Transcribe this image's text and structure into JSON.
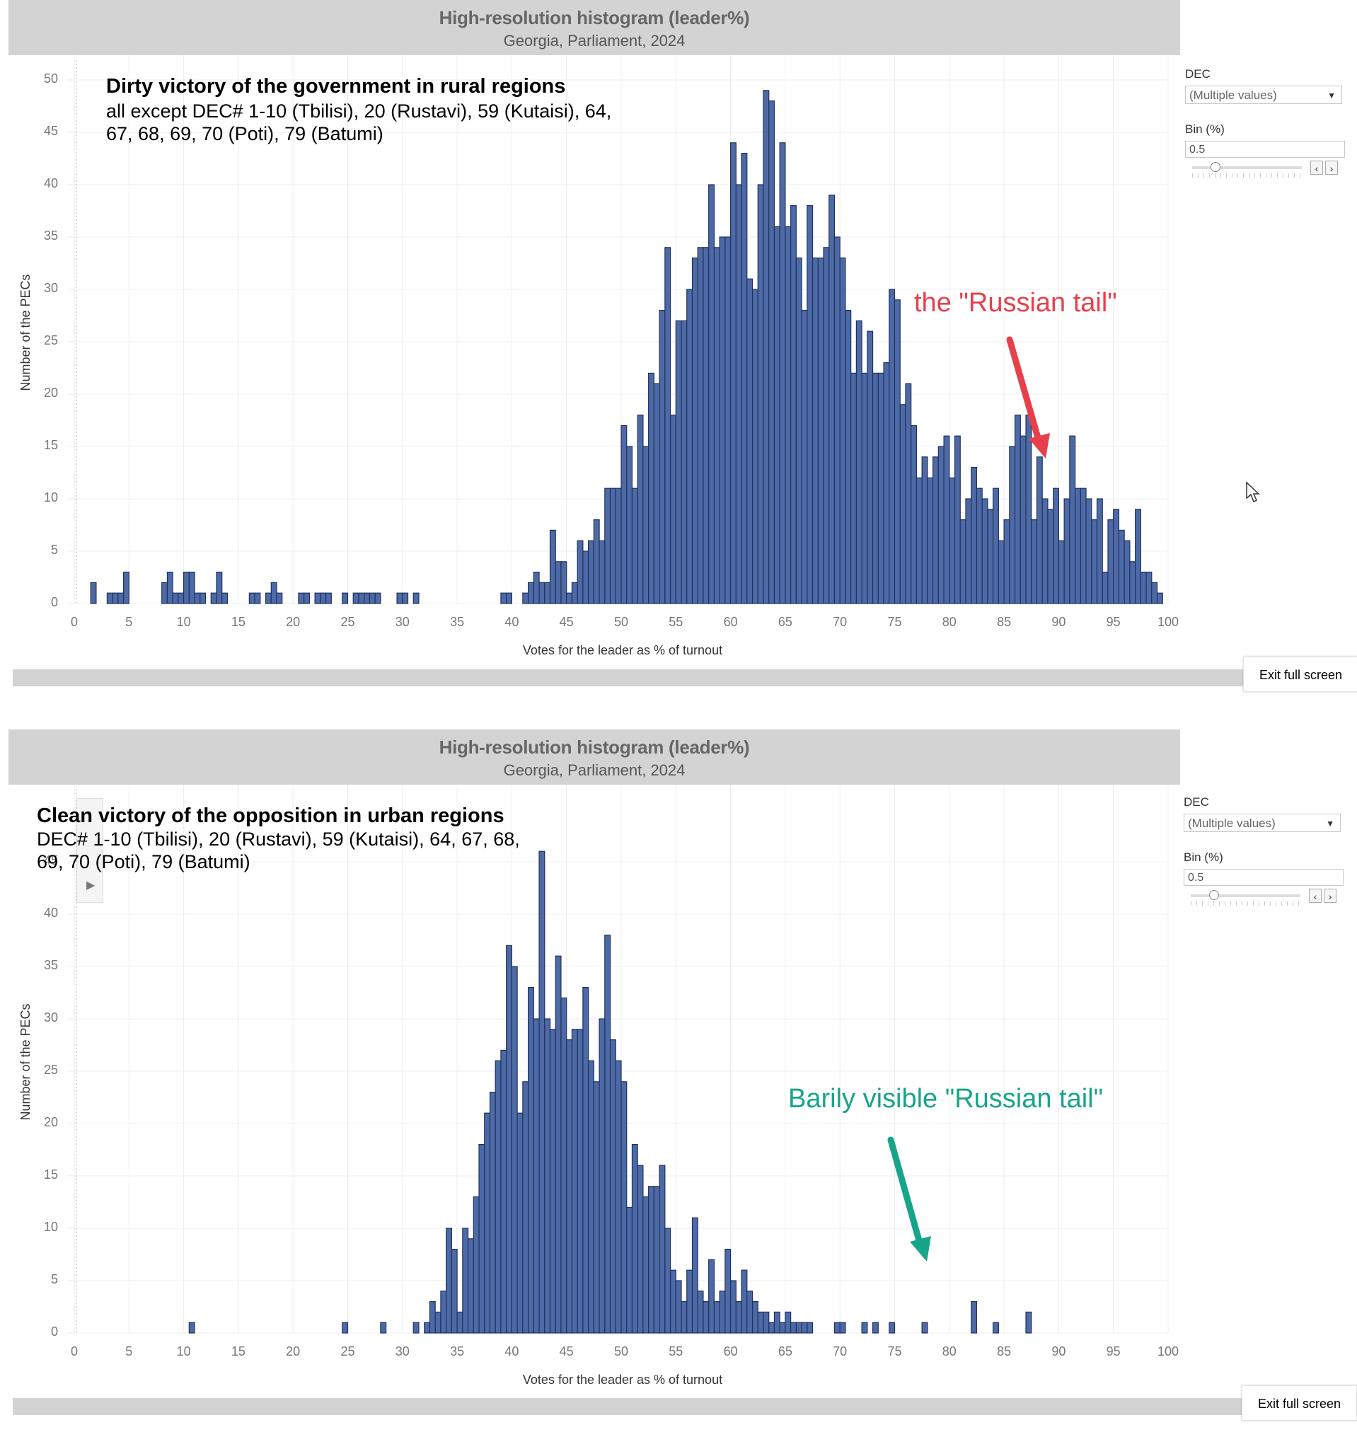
{
  "panels": [
    {
      "header": {
        "title": "High-resolution histogram (leader%)",
        "subtitle": "Georgia, Parliament, 2024"
      },
      "annotation": {
        "heading": "Dirty victory of the government in rural regions",
        "lines": [
          "all except DEC# 1-10 (Tbilisi), 20 (Rustavi), 59 (Kutaisi), 64,",
          "67, 68, 69, 70 (Poti), 79 (Batumi)"
        ]
      },
      "callout": {
        "text": "the \"Russian tail\"",
        "color": "#e8404a"
      },
      "controls": {
        "dec_label": "DEC",
        "dec_value": "(Multiple values)",
        "bin_label": "Bin (%)",
        "bin_value": "0.5"
      },
      "exit_label": "Exit full screen"
    },
    {
      "header": {
        "title": "High-resolution histogram (leader%)",
        "subtitle": "Georgia, Parliament, 2024"
      },
      "annotation": {
        "heading": "Clean victory of the opposition in urban regions",
        "lines": [
          "DEC# 1-10 (Tbilisi), 20 (Rustavi), 59 (Kutaisi), 64, 67, 68,",
          "69, 70 (Poti), 79 (Batumi)"
        ]
      },
      "callout": {
        "text": "Barily visible \"Russian tail\"",
        "color": "#17a589"
      },
      "controls": {
        "dec_label": "DEC",
        "dec_value": "(Multiple values)",
        "bin_label": "Bin (%)",
        "bin_value": "0.5"
      },
      "exit_label": "Exit full screen"
    }
  ],
  "bar_color": "#4e6aa6",
  "chart_data": [
    {
      "type": "bar",
      "title": "High-resolution histogram (leader%)",
      "subtitle": "Georgia, Parliament, 2024",
      "xlabel": "Votes for the leader as % of turnout",
      "ylabel": "Number of the PECs",
      "xlim": [
        0,
        100
      ],
      "ylim": [
        0,
        50
      ],
      "xticks": [
        0,
        5,
        10,
        15,
        20,
        25,
        30,
        35,
        40,
        45,
        50,
        55,
        60,
        65,
        70,
        75,
        80,
        85,
        90,
        95,
        100
      ],
      "yticks": [
        0,
        5,
        10,
        15,
        20,
        25,
        30,
        35,
        40,
        45,
        50
      ],
      "bin_width": 0.5,
      "bins": [
        [
          1.5,
          2
        ],
        [
          3,
          1
        ],
        [
          3.5,
          1
        ],
        [
          4,
          1
        ],
        [
          4.5,
          3
        ],
        [
          8,
          2
        ],
        [
          8.5,
          3
        ],
        [
          9,
          1
        ],
        [
          9.5,
          1
        ],
        [
          10,
          3
        ],
        [
          10.5,
          3
        ],
        [
          11,
          1
        ],
        [
          11.5,
          1
        ],
        [
          12.5,
          1
        ],
        [
          13,
          3
        ],
        [
          13.5,
          1
        ],
        [
          16,
          1
        ],
        [
          16.5,
          1
        ],
        [
          17.5,
          1
        ],
        [
          18,
          2
        ],
        [
          18.5,
          1
        ],
        [
          20.5,
          1
        ],
        [
          21,
          1
        ],
        [
          22,
          1
        ],
        [
          22.5,
          1
        ],
        [
          23,
          1
        ],
        [
          24.5,
          1
        ],
        [
          25.5,
          1
        ],
        [
          26,
          1
        ],
        [
          26.5,
          1
        ],
        [
          27,
          1
        ],
        [
          27.5,
          1
        ],
        [
          29.5,
          1
        ],
        [
          30,
          1
        ],
        [
          31,
          1
        ],
        [
          39,
          1
        ],
        [
          39.5,
          1
        ],
        [
          41,
          1
        ],
        [
          41.5,
          2
        ],
        [
          42,
          3
        ],
        [
          42.5,
          2
        ],
        [
          43,
          2
        ],
        [
          43.5,
          7
        ],
        [
          44,
          4
        ],
        [
          44.5,
          4
        ],
        [
          45,
          1
        ],
        [
          45.5,
          2
        ],
        [
          46,
          6
        ],
        [
          46.5,
          5
        ],
        [
          47,
          6
        ],
        [
          47.5,
          8
        ],
        [
          48,
          6
        ],
        [
          48.5,
          11
        ],
        [
          49,
          11
        ],
        [
          49.5,
          11
        ],
        [
          50,
          17
        ],
        [
          50.5,
          15
        ],
        [
          51,
          11
        ],
        [
          51.5,
          18
        ],
        [
          52,
          15
        ],
        [
          52.5,
          22
        ],
        [
          53,
          21
        ],
        [
          53.5,
          28
        ],
        [
          54,
          34
        ],
        [
          54.5,
          18
        ],
        [
          55,
          27
        ],
        [
          55.5,
          27
        ],
        [
          56,
          30
        ],
        [
          56.5,
          33
        ],
        [
          57,
          34
        ],
        [
          57.5,
          34
        ],
        [
          58,
          40
        ],
        [
          58.5,
          34
        ],
        [
          59,
          35
        ],
        [
          59.5,
          35
        ],
        [
          60,
          44
        ],
        [
          60.5,
          40
        ],
        [
          61,
          43
        ],
        [
          61.5,
          31
        ],
        [
          62,
          30
        ],
        [
          62.5,
          40
        ],
        [
          63,
          49
        ],
        [
          63.5,
          48
        ],
        [
          64,
          36
        ],
        [
          64.5,
          44
        ],
        [
          65,
          36
        ],
        [
          65.5,
          38
        ],
        [
          66,
          33
        ],
        [
          66.5,
          28
        ],
        [
          67,
          38
        ],
        [
          67.5,
          33
        ],
        [
          68,
          33
        ],
        [
          68.5,
          34
        ],
        [
          69,
          39
        ],
        [
          69.5,
          35
        ],
        [
          70,
          33
        ],
        [
          70.5,
          28
        ],
        [
          71,
          22
        ],
        [
          71.5,
          27
        ],
        [
          72,
          22
        ],
        [
          72.5,
          26
        ],
        [
          73,
          22
        ],
        [
          73.5,
          22
        ],
        [
          74,
          23
        ],
        [
          74.5,
          30
        ],
        [
          75,
          29
        ],
        [
          75.5,
          19
        ],
        [
          76,
          21
        ],
        [
          76.5,
          17
        ],
        [
          77,
          12
        ],
        [
          77.5,
          14
        ],
        [
          78,
          12
        ],
        [
          78.5,
          14
        ],
        [
          79,
          15
        ],
        [
          79.5,
          16
        ],
        [
          80,
          12
        ],
        [
          80.5,
          16
        ],
        [
          81,
          8
        ],
        [
          81.5,
          10
        ],
        [
          82,
          13
        ],
        [
          82.5,
          11
        ],
        [
          83,
          10
        ],
        [
          83.5,
          9
        ],
        [
          84,
          11
        ],
        [
          84.5,
          6
        ],
        [
          85,
          8
        ],
        [
          85.5,
          15
        ],
        [
          86,
          18
        ],
        [
          86.5,
          16
        ],
        [
          87,
          18
        ],
        [
          87.5,
          8
        ],
        [
          88,
          14
        ],
        [
          88.5,
          10
        ],
        [
          89,
          9
        ],
        [
          89.5,
          11
        ],
        [
          90,
          6
        ],
        [
          90.5,
          10
        ],
        [
          91,
          16
        ],
        [
          91.5,
          11
        ],
        [
          92,
          11
        ],
        [
          92.5,
          10
        ],
        [
          93,
          8
        ],
        [
          93.5,
          10
        ],
        [
          94,
          3
        ],
        [
          94.5,
          8
        ],
        [
          95,
          9
        ],
        [
          95.5,
          7
        ],
        [
          96,
          6
        ],
        [
          96.5,
          4
        ],
        [
          97,
          9
        ],
        [
          97.5,
          3
        ],
        [
          98,
          3
        ],
        [
          98.5,
          2
        ],
        [
          99,
          1
        ]
      ]
    },
    {
      "type": "bar",
      "title": "High-resolution histogram (leader%)",
      "subtitle": "Georgia, Parliament, 2024",
      "xlabel": "Votes for the leader as % of turnout",
      "ylabel": "Number of the PECs",
      "xlim": [
        0,
        100
      ],
      "ylim": [
        0,
        50
      ],
      "xticks": [
        0,
        5,
        10,
        15,
        20,
        25,
        30,
        35,
        40,
        45,
        50,
        55,
        60,
        65,
        70,
        75,
        80,
        85,
        90,
        95,
        100
      ],
      "yticks": [
        0,
        5,
        10,
        15,
        20,
        25,
        30,
        35,
        40,
        45
      ],
      "bin_width": 0.5,
      "bins": [
        [
          10.5,
          1
        ],
        [
          24.5,
          1
        ],
        [
          28,
          1
        ],
        [
          31,
          1
        ],
        [
          32,
          1
        ],
        [
          32.5,
          3
        ],
        [
          33,
          2
        ],
        [
          33.5,
          4
        ],
        [
          34,
          10
        ],
        [
          34.5,
          8
        ],
        [
          35,
          2
        ],
        [
          35.5,
          10
        ],
        [
          36,
          9
        ],
        [
          36.5,
          13
        ],
        [
          37,
          18
        ],
        [
          37.5,
          21
        ],
        [
          38,
          23
        ],
        [
          38.5,
          26
        ],
        [
          39,
          27
        ],
        [
          39.5,
          37
        ],
        [
          40,
          35
        ],
        [
          40.5,
          21
        ],
        [
          41,
          24
        ],
        [
          41.5,
          33
        ],
        [
          42,
          30
        ],
        [
          42.5,
          46
        ],
        [
          43,
          30
        ],
        [
          43.5,
          29
        ],
        [
          44,
          36
        ],
        [
          44.5,
          32
        ],
        [
          45,
          28
        ],
        [
          45.5,
          29
        ],
        [
          46,
          29
        ],
        [
          46.5,
          33
        ],
        [
          47,
          26
        ],
        [
          47.5,
          24
        ],
        [
          48,
          30
        ],
        [
          48.5,
          38
        ],
        [
          49,
          28
        ],
        [
          49.5,
          26
        ],
        [
          50,
          24
        ],
        [
          50.5,
          12
        ],
        [
          51,
          18
        ],
        [
          51.5,
          16
        ],
        [
          52,
          13
        ],
        [
          52.5,
          14
        ],
        [
          53,
          14
        ],
        [
          53.5,
          16
        ],
        [
          54,
          10
        ],
        [
          54.5,
          6
        ],
        [
          55,
          5
        ],
        [
          55.5,
          3
        ],
        [
          56,
          6
        ],
        [
          56.5,
          11
        ],
        [
          57,
          4
        ],
        [
          57.5,
          3
        ],
        [
          58,
          7
        ],
        [
          58.5,
          3
        ],
        [
          59,
          4
        ],
        [
          59.5,
          8
        ],
        [
          60,
          5
        ],
        [
          60.5,
          3
        ],
        [
          61,
          6
        ],
        [
          61.5,
          4
        ],
        [
          62,
          3
        ],
        [
          62.5,
          2
        ],
        [
          63,
          2
        ],
        [
          63.5,
          1
        ],
        [
          64,
          2
        ],
        [
          64.5,
          1
        ],
        [
          65,
          2
        ],
        [
          65.5,
          1
        ],
        [
          66,
          1
        ],
        [
          66.5,
          1
        ],
        [
          67,
          1
        ],
        [
          69.5,
          1
        ],
        [
          70,
          1
        ],
        [
          72,
          1
        ],
        [
          73,
          1
        ],
        [
          74.5,
          1
        ],
        [
          77.5,
          1
        ],
        [
          82,
          3
        ],
        [
          84,
          1
        ],
        [
          87,
          2
        ]
      ]
    }
  ]
}
